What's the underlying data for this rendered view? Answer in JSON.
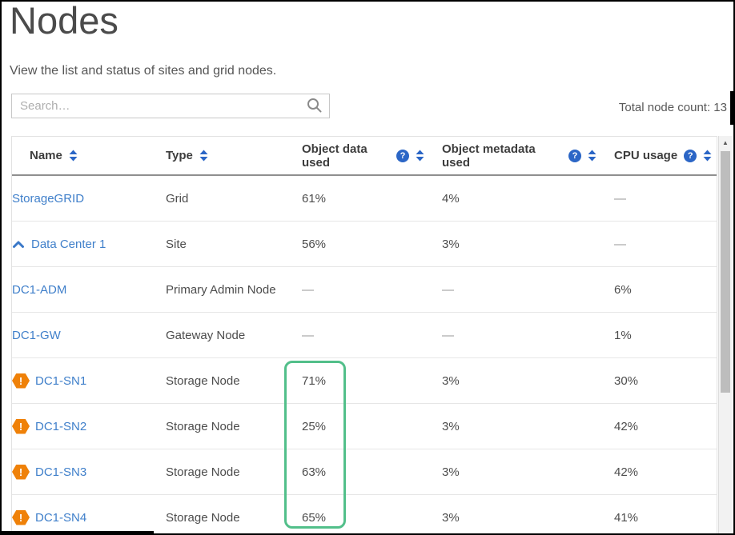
{
  "page": {
    "title": "Nodes",
    "subtitle": "View the list and status of sites and grid nodes.",
    "total_node_count_label": "Total node count: 13"
  },
  "search": {
    "placeholder": "Search…",
    "value": ""
  },
  "icons": {
    "help_glyph": "?",
    "warning_glyph": "!",
    "scroll_up_glyph": "▲"
  },
  "colors": {
    "link_blue": "#3f7fca",
    "icon_blue": "#2b66c6",
    "warning_orange": "#ef8109",
    "highlight_green": "#52bf8a"
  },
  "table": {
    "columns": [
      {
        "label": "Name",
        "sortable": true,
        "has_help": false
      },
      {
        "label": "Type",
        "sortable": true,
        "has_help": false
      },
      {
        "label": "Object data used",
        "sortable": true,
        "has_help": true
      },
      {
        "label": "Object metadata used",
        "sortable": true,
        "has_help": true
      },
      {
        "label": "CPU usage",
        "sortable": true,
        "has_help": true
      }
    ],
    "rows": [
      {
        "name": "StorageGRID",
        "type": "Grid",
        "object_data_used": "61%",
        "object_metadata_used": "4%",
        "cpu_usage": "—",
        "level": "grid",
        "alert": false,
        "expanded": false
      },
      {
        "name": "Data Center 1",
        "type": "Site",
        "object_data_used": "56%",
        "object_metadata_used": "3%",
        "cpu_usage": "—",
        "level": "site",
        "alert": false,
        "expanded": true
      },
      {
        "name": "DC1-ADM",
        "type": "Primary Admin Node",
        "object_data_used": "—",
        "object_metadata_used": "—",
        "cpu_usage": "6%",
        "level": "child",
        "alert": false,
        "expanded": false
      },
      {
        "name": "DC1-GW",
        "type": "Gateway Node",
        "object_data_used": "—",
        "object_metadata_used": "—",
        "cpu_usage": "1%",
        "level": "child",
        "alert": false,
        "expanded": false
      },
      {
        "name": "DC1-SN1",
        "type": "Storage Node",
        "object_data_used": "71%",
        "object_metadata_used": "3%",
        "cpu_usage": "30%",
        "level": "alert",
        "alert": true,
        "expanded": false
      },
      {
        "name": "DC1-SN2",
        "type": "Storage Node",
        "object_data_used": "25%",
        "object_metadata_used": "3%",
        "cpu_usage": "42%",
        "level": "alert",
        "alert": true,
        "expanded": false
      },
      {
        "name": "DC1-SN3",
        "type": "Storage Node",
        "object_data_used": "63%",
        "object_metadata_used": "3%",
        "cpu_usage": "42%",
        "level": "alert",
        "alert": true,
        "expanded": false
      },
      {
        "name": "DC1-SN4",
        "type": "Storage Node",
        "object_data_used": "65%",
        "object_metadata_used": "3%",
        "cpu_usage": "41%",
        "level": "alert",
        "alert": true,
        "expanded": false
      }
    ]
  },
  "annotation": {
    "highlighted_column": "Object data used",
    "highlighted_values": [
      "71%",
      "25%",
      "63%",
      "65%"
    ],
    "color": "#52bf8a"
  }
}
